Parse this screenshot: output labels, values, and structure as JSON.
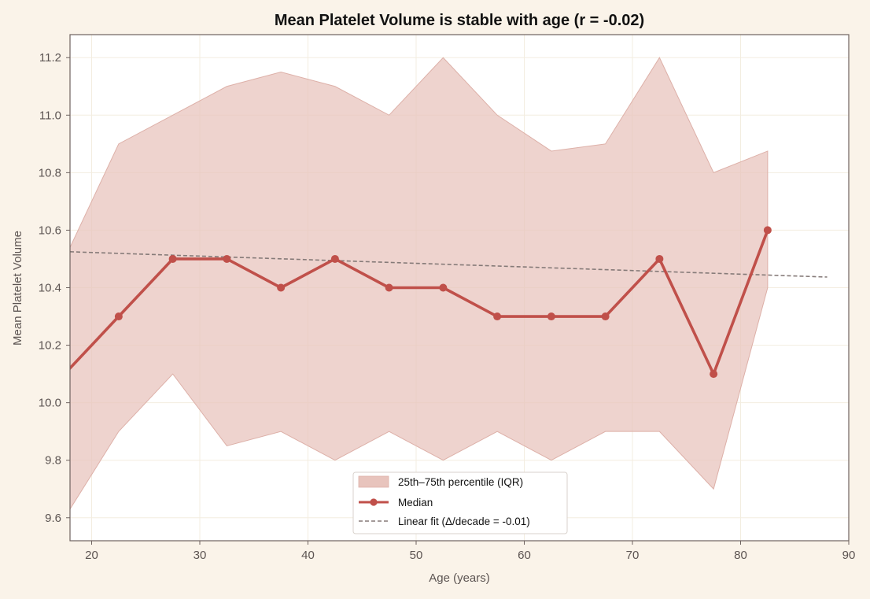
{
  "chart_data": {
    "type": "line",
    "title": "Mean Platelet Volume is stable with age (r = -0.02)",
    "xlabel": "Age (years)",
    "ylabel": "Mean Platelet Volume",
    "xlim": [
      18,
      90
    ],
    "ylim": [
      9.52,
      11.28
    ],
    "xticks": [
      20,
      30,
      40,
      50,
      60,
      70,
      80,
      90
    ],
    "yticks": [
      9.6,
      9.8,
      10.0,
      10.2,
      10.4,
      10.6,
      10.8,
      11.0,
      11.2
    ],
    "ytick_labels": [
      "9.6",
      "9.8",
      "10.0",
      "10.2",
      "10.4",
      "10.6",
      "10.8",
      "11.0",
      "11.2"
    ],
    "grid": true,
    "legend_position": "bottom-center",
    "x": [
      17.5,
      22.5,
      27.5,
      32.5,
      37.5,
      42.5,
      47.5,
      52.5,
      57.5,
      62.5,
      67.5,
      72.5,
      77.5,
      82.5
    ],
    "series": [
      {
        "name": "Median",
        "kind": "line-markers",
        "color": "#c0504a",
        "values": [
          10.1,
          10.3,
          10.5,
          10.5,
          10.4,
          10.5,
          10.4,
          10.4,
          10.3,
          10.3,
          10.3,
          10.5,
          10.1,
          10.6
        ]
      },
      {
        "name": "25th–75th percentile (IQR)",
        "kind": "band",
        "color": "#e8c4bd",
        "lower": [
          9.6,
          9.9,
          10.1,
          9.85,
          9.9,
          9.8,
          9.9,
          9.8,
          9.9,
          9.8,
          9.9,
          9.9,
          9.7,
          10.4
        ],
        "upper": [
          10.5,
          10.9,
          11.0,
          11.1,
          11.15,
          11.1,
          11.0,
          11.2,
          11.0,
          10.875,
          10.9,
          11.2,
          10.8,
          10.875
        ]
      },
      {
        "name": "Linear fit (Δ/decade = -0.01)",
        "kind": "dashed-line",
        "color": "#857a78",
        "x": [
          18,
          88
        ],
        "values": [
          10.525,
          10.437
        ]
      }
    ]
  }
}
